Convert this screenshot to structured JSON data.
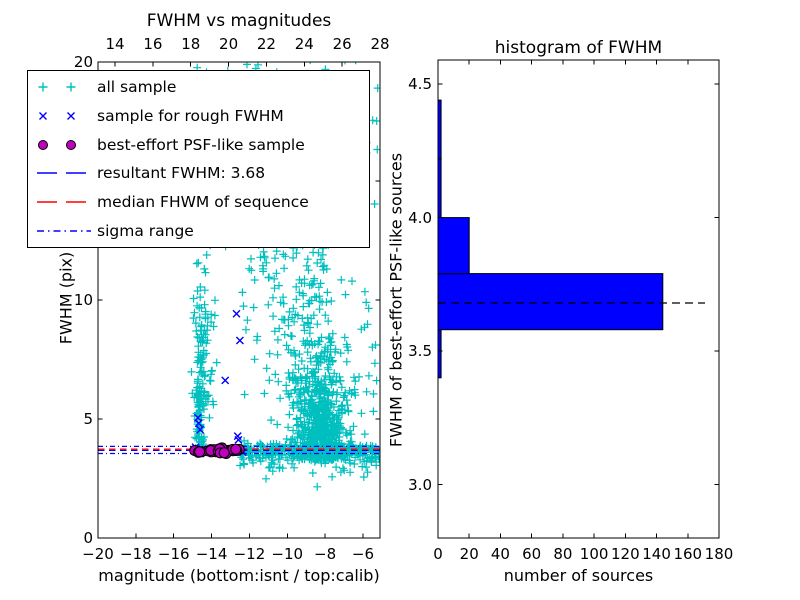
{
  "figure": {
    "background": "#ffffff"
  },
  "colors": {
    "all_sample": "#00bfbf",
    "rough_sample": "#0000ff",
    "psf_sample": "#bf00bf",
    "resultant_line": "#0000ff",
    "median_line": "#ff0000",
    "sigma_line": "#0000ff",
    "hist_bar": "#0000ff",
    "hist_median_dash": "#000000",
    "axes": "#000000"
  },
  "chart_data": [
    {
      "type": "scatter",
      "title": "FWHM vs magnitudes",
      "xlabel": "magnitude (bottom:isnt / top:calib)",
      "ylabel": "FWHM (pix)",
      "xlim": [
        -20,
        -5.1
      ],
      "ylim": [
        0,
        20
      ],
      "grid": false,
      "x_ticks": [
        [
          -20,
          "−20"
        ],
        [
          -18,
          "−18"
        ],
        [
          -16,
          "−16"
        ],
        [
          -14,
          "−14"
        ],
        [
          -12,
          "−12"
        ],
        [
          -10,
          "−10"
        ],
        [
          -8,
          "−8"
        ],
        [
          -6,
          "−6"
        ]
      ],
      "y_ticks": [
        [
          0,
          "0"
        ],
        [
          5,
          "5"
        ],
        [
          10,
          "10"
        ],
        [
          15,
          "15"
        ],
        [
          20,
          "20"
        ]
      ],
      "top_axis": {
        "lim": [
          13.1,
          28.0
        ],
        "ticks": [
          [
            14,
            "14"
          ],
          [
            16,
            "16"
          ],
          [
            18,
            "18"
          ],
          [
            20,
            "20"
          ],
          [
            22,
            "22"
          ],
          [
            24,
            "24"
          ],
          [
            26,
            "26"
          ],
          [
            28,
            "28"
          ]
        ]
      },
      "series": [
        {
          "name": "all sample",
          "marker": "plus",
          "color": "#00bfbf",
          "seed": 42,
          "clusters": [
            {
              "n": 55,
              "x": [
                "g",
                -14.62,
                0.13
              ],
              "y": [
                "u",
                3.7,
                6.3
              ]
            },
            {
              "n": 95,
              "x": [
                "g",
                -14.55,
                0.2
              ],
              "y": [
                "g",
                7.8,
                1.5
              ]
            },
            {
              "n": 40,
              "x": [
                "g",
                -14.45,
                0.28
              ],
              "y": [
                "u",
                9.8,
                19.8
              ]
            },
            {
              "n": 10,
              "x": [
                "u",
                -14.1,
                -13.5
              ],
              "y": [
                "u",
                5.5,
                11
              ]
            },
            {
              "n": 620,
              "x": [
                "g",
                -8.25,
                0.7
              ],
              "y": [
                "wedge",
                3.3,
                1.85
              ]
            },
            {
              "n": 190,
              "x": [
                "g",
                -9.1,
                0.95
              ],
              "y": [
                "u",
                5.5,
                13.2
              ]
            },
            {
              "n": 130,
              "x": [
                "u",
                -13.4,
                -5.15
              ],
              "y": [
                "u",
                11.5,
                20.3
              ]
            },
            {
              "n": 240,
              "x": [
                "u",
                -12.5,
                -5.12
              ],
              "y": [
                "g",
                3.66,
                0.15
              ]
            },
            {
              "n": 90,
              "x": [
                "u",
                -12.5,
                -5.12
              ],
              "y": [
                "g",
                3.35,
                0.28
              ]
            },
            {
              "n": 12,
              "x": [
                "u",
                -11.5,
                -5.3
              ],
              "y": [
                "u",
                2.7,
                3.2
              ]
            },
            {
              "n": 30,
              "x": [
                "u",
                -7.2,
                -5.15
              ],
              "y": [
                "u",
                4,
                11
              ]
            },
            {
              "n": 25,
              "x": [
                "u",
                -12.4,
                -10.3
              ],
              "y": [
                "u",
                4,
                11.5
              ]
            }
          ],
          "points": [
            [
              -8.42,
              2.15
            ]
          ]
        },
        {
          "name": "sample for rough FWHM",
          "marker": "x",
          "color": "#0000ff",
          "points": [
            [
              -14.85,
              3.82
            ],
            [
              -14.6,
              3.55
            ],
            [
              -14.5,
              3.74
            ],
            [
              -14.2,
              3.62
            ],
            [
              -13.95,
              3.56
            ],
            [
              -13.9,
              3.78
            ],
            [
              -13.6,
              3.68
            ],
            [
              -13.45,
              3.82
            ],
            [
              -13.3,
              3.63
            ],
            [
              -13.0,
              3.71
            ],
            [
              -12.7,
              3.66
            ],
            [
              -12.45,
              3.72
            ],
            [
              -12.35,
              3.6
            ],
            [
              -14.72,
              5.05
            ],
            [
              -14.68,
              4.82
            ],
            [
              -14.6,
              4.55
            ],
            [
              -12.68,
              9.42
            ],
            [
              -12.5,
              8.3
            ],
            [
              -13.28,
              6.62
            ],
            [
              -12.62,
              4.28
            ],
            [
              -12.58,
              4.12
            ]
          ]
        },
        {
          "name": "best-effort PSF-like sample",
          "marker": "circle",
          "color": "#bf00bf",
          "seed": 7,
          "clusters": [
            {
              "n": 30,
              "x": [
                "u",
                -14.92,
                -12.45
              ],
              "y": [
                "g",
                3.66,
                0.05
              ]
            }
          ]
        }
      ],
      "lines": [
        {
          "name": "resultant FWHM",
          "y": 3.68,
          "color": "#0000ff",
          "style": "dashed"
        },
        {
          "name": "median FHWM of sequence",
          "y": 3.73,
          "color": "#ff0000",
          "style": "dashed"
        },
        {
          "name": "sigma range upper",
          "y": 3.85,
          "color": "#0000ff",
          "style": "dashdot"
        },
        {
          "name": "sigma range lower",
          "y": 3.55,
          "color": "#0000ff",
          "style": "dashdot"
        }
      ],
      "legend": {
        "position": "upper left",
        "items": [
          {
            "label": "all sample",
            "marker": "plus",
            "color": "#00bfbf"
          },
          {
            "label": "sample for rough FWHM",
            "marker": "x",
            "color": "#0000ff"
          },
          {
            "label": "best-effort PSF-like sample",
            "marker": "circle",
            "color": "#bf00bf"
          },
          {
            "label": "resultant FWHM: 3.68",
            "line": "dashed",
            "color": "#0000ff"
          },
          {
            "label": "median FHWM of sequence",
            "line": "dashed",
            "color": "#ff0000"
          },
          {
            "label": "sigma range",
            "line": "dashdot",
            "color": "#0000ff"
          }
        ]
      }
    },
    {
      "type": "bar",
      "orientation": "horizontal",
      "title": "histogram of FWHM",
      "xlabel": "number of sources",
      "ylabel": "FWHM of best-effort PSF-like sources",
      "xlim": [
        0,
        180
      ],
      "ylim": [
        2.8,
        4.59
      ],
      "grid": false,
      "x_ticks": [
        [
          0,
          "0"
        ],
        [
          20,
          "20"
        ],
        [
          40,
          "40"
        ],
        [
          60,
          "60"
        ],
        [
          80,
          "80"
        ],
        [
          100,
          "100"
        ],
        [
          120,
          "120"
        ],
        [
          140,
          "140"
        ],
        [
          160,
          "160"
        ],
        [
          180,
          "180"
        ]
      ],
      "y_ticks": [
        [
          3.0,
          "3.0"
        ],
        [
          3.5,
          "3.5"
        ],
        [
          4.0,
          "4.0"
        ],
        [
          4.5,
          "4.5"
        ]
      ],
      "bin_edges": [
        3.4,
        3.58,
        3.79,
        4.0,
        4.22,
        4.44
      ],
      "counts": [
        2,
        144,
        20,
        2,
        2
      ],
      "bar_color": "#0000ff",
      "median_line": {
        "y": 3.68,
        "color": "#000000",
        "style": "dashed",
        "xmax_frac": 0.95
      }
    }
  ]
}
